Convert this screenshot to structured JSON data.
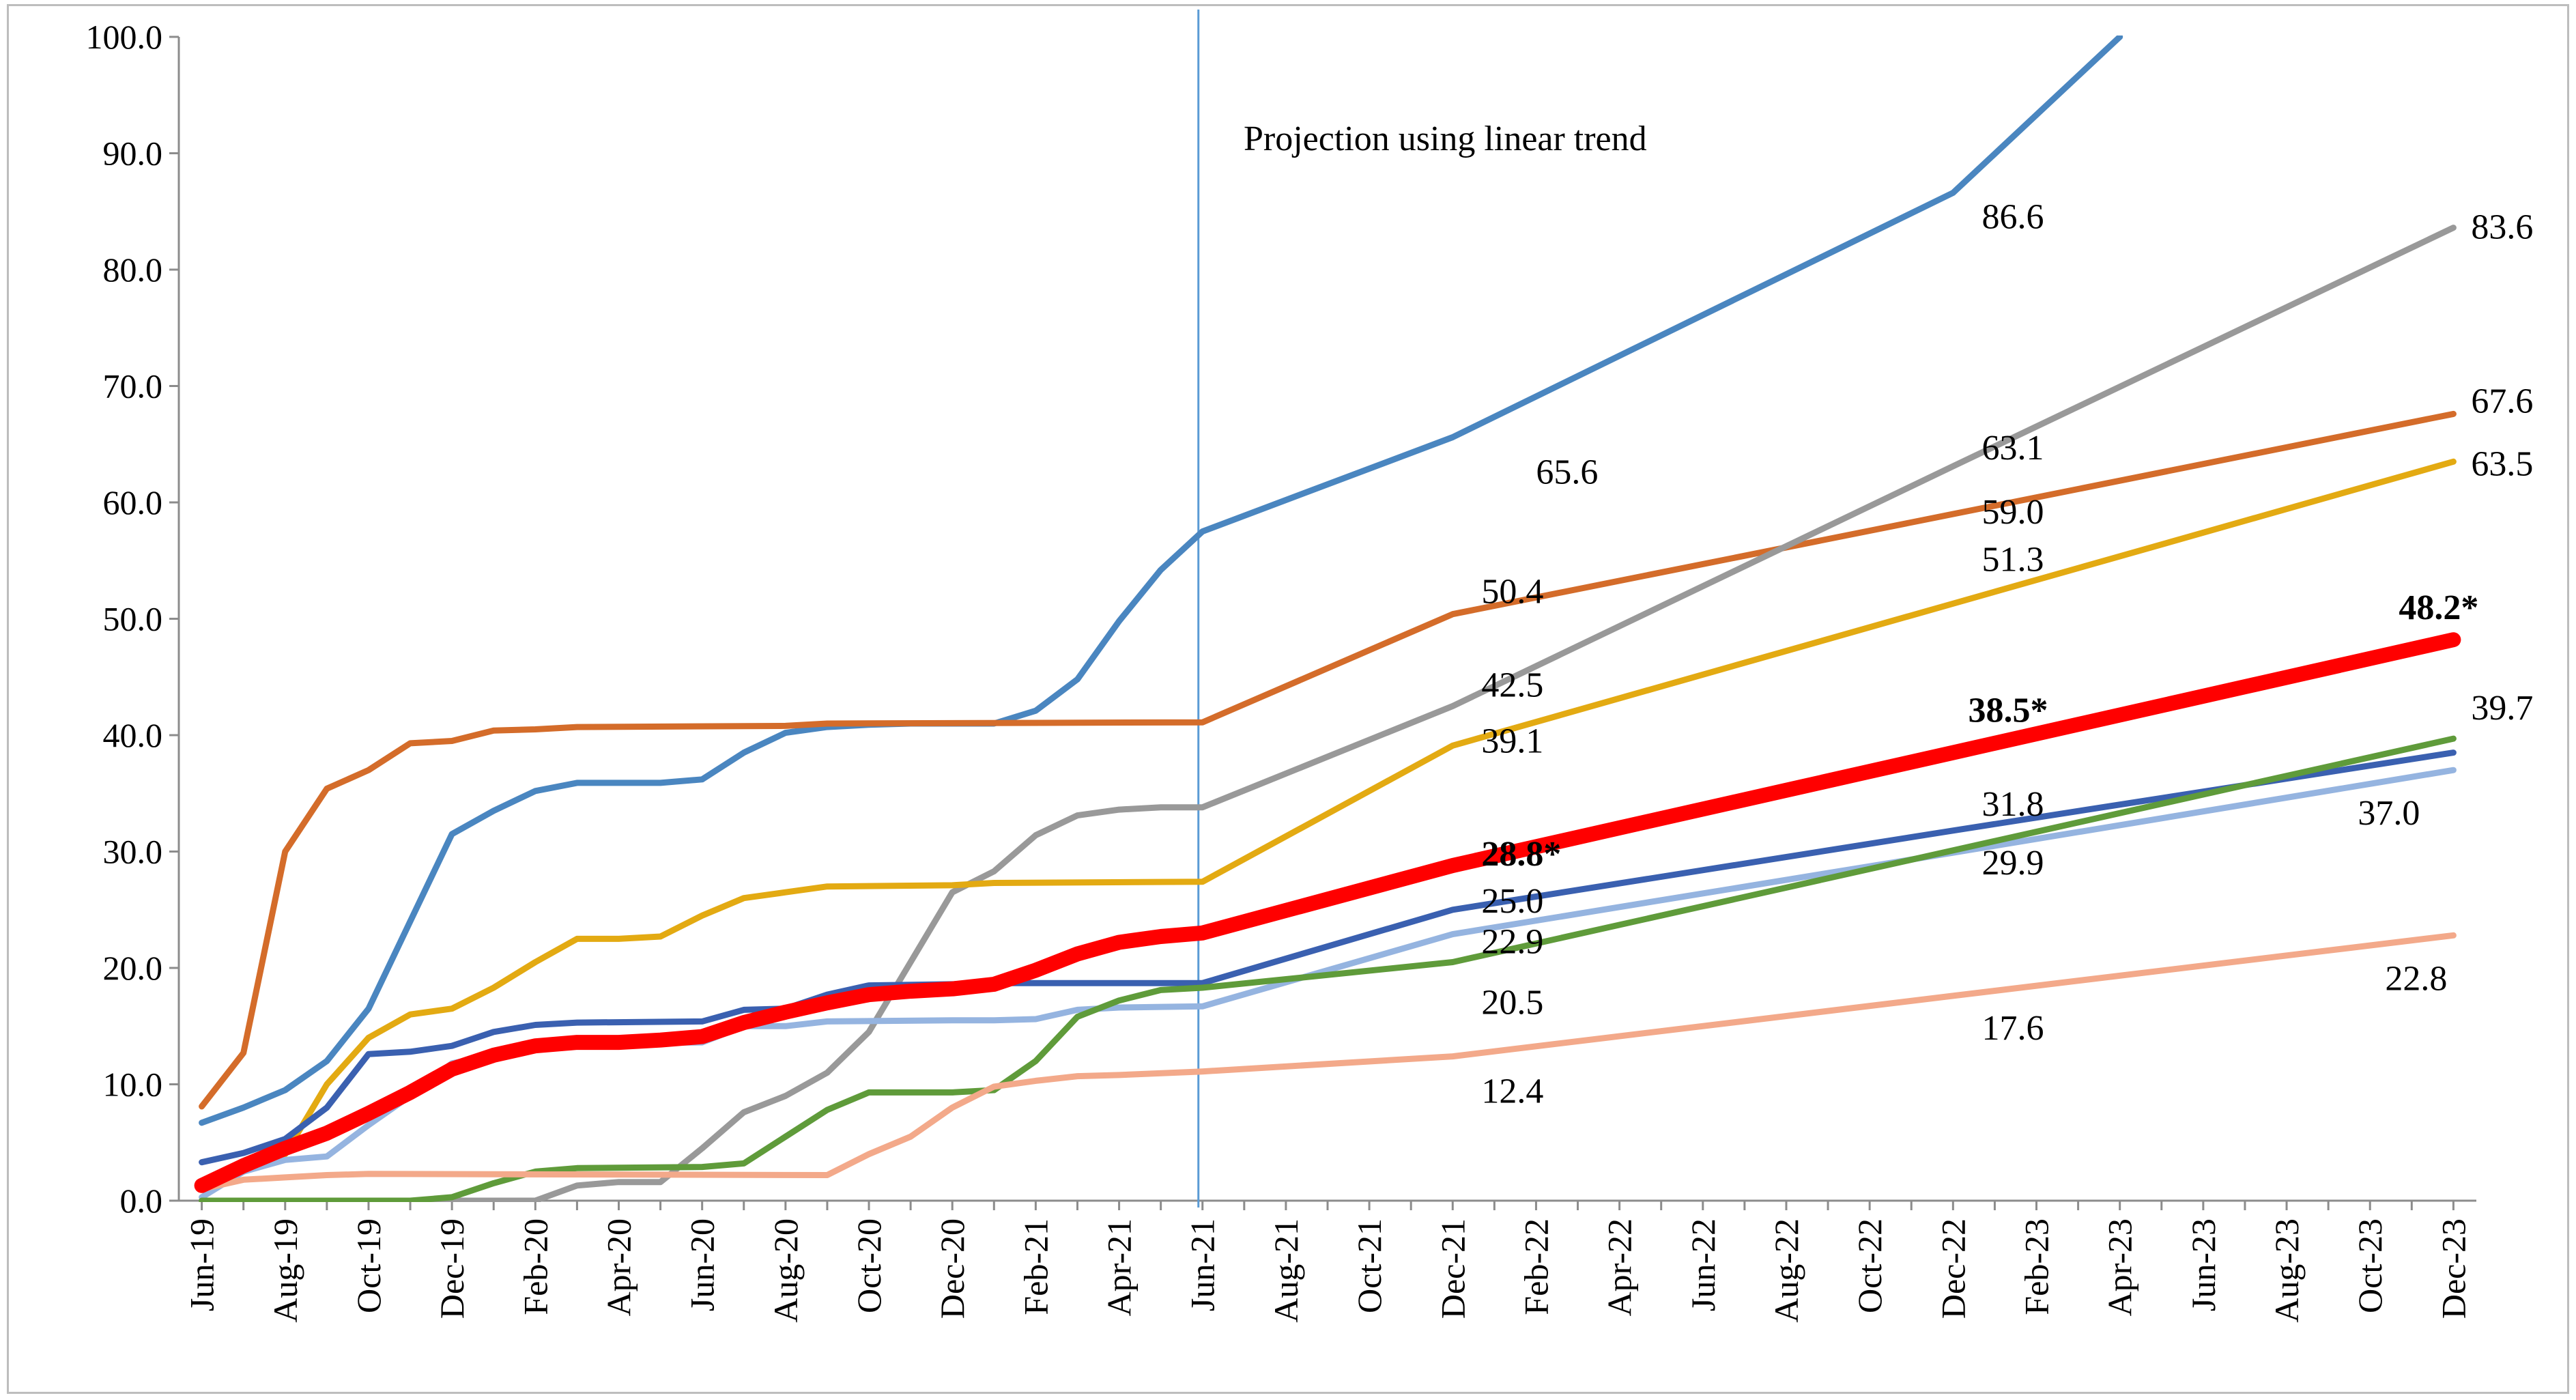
{
  "chart_data": {
    "type": "line",
    "title": "",
    "xlabel": "",
    "ylabel": "",
    "ylim": [
      0,
      100
    ],
    "yticks": [
      "0.0",
      "10.0",
      "20.0",
      "30.0",
      "40.0",
      "50.0",
      "60.0",
      "70.0",
      "80.0",
      "90.0",
      "100.0"
    ],
    "x_tick_labels": [
      "Jun-19",
      "Aug-19",
      "Oct-19",
      "Dec-19",
      "Feb-20",
      "Apr-20",
      "Jun-20",
      "Aug-20",
      "Oct-20",
      "Dec-20",
      "Feb-21",
      "Apr-21",
      "Jun-21",
      "Aug-21",
      "Oct-21",
      "Dec-21",
      "Feb-22",
      "Apr-22",
      "Jun-22",
      "Aug-22",
      "Oct-22",
      "Dec-22",
      "Feb-23",
      "Apr-23",
      "Jun-23",
      "Aug-23",
      "Oct-23",
      "Dec-23"
    ],
    "grid": false,
    "legend": "none",
    "vertical_marker": {
      "x": "Jun-21",
      "label": "Projection using linear trend",
      "color": "#5b9bd5"
    },
    "series": [
      {
        "color": "#4a86c0",
        "width": 9,
        "points": [
          [
            "Jun-19",
            6.7
          ],
          [
            "Jul-19",
            8.0
          ],
          [
            "Aug-19",
            9.5
          ],
          [
            "Sep-19",
            12.0
          ],
          [
            "Oct-19",
            16.5
          ],
          [
            "Nov-19",
            24.0
          ],
          [
            "Dec-19",
            31.5
          ],
          [
            "Jan-20",
            33.5
          ],
          [
            "Feb-20",
            35.2
          ],
          [
            "Mar-20",
            35.9
          ],
          [
            "Apr-20",
            35.9
          ],
          [
            "May-20",
            35.9
          ],
          [
            "Jun-20",
            36.2
          ],
          [
            "Jul-20",
            38.5
          ],
          [
            "Aug-20",
            40.2
          ],
          [
            "Sep-20",
            40.7
          ],
          [
            "Oct-20",
            40.9
          ],
          [
            "Nov-20",
            41.0
          ],
          [
            "Dec-20",
            41.0
          ],
          [
            "Jan-21",
            41.0
          ],
          [
            "Feb-21",
            42.1
          ],
          [
            "Mar-21",
            44.8
          ],
          [
            "Apr-21",
            49.8
          ],
          [
            "May-21",
            54.2
          ],
          [
            "Jun-21",
            57.5
          ],
          [
            "Dec-21",
            65.6
          ],
          [
            "Dec-22",
            86.6
          ],
          [
            "Apr-23",
            100.0
          ]
        ]
      },
      {
        "color": "#d46c2a",
        "width": 9,
        "points": [
          [
            "Jun-19",
            8.1
          ],
          [
            "Jul-19",
            12.7
          ],
          [
            "Aug-19",
            30.0
          ],
          [
            "Sep-19",
            35.4
          ],
          [
            "Oct-19",
            37.0
          ],
          [
            "Nov-19",
            39.3
          ],
          [
            "Dec-19",
            39.5
          ],
          [
            "Jan-20",
            40.4
          ],
          [
            "Feb-20",
            40.5
          ],
          [
            "Mar-20",
            40.7
          ],
          [
            "Aug-20",
            40.8
          ],
          [
            "Sep-20",
            41.0
          ],
          [
            "Jun-21",
            41.1
          ],
          [
            "Dec-21",
            50.4
          ],
          [
            "Dec-22",
            59.0
          ],
          [
            "Dec-23",
            67.6
          ]
        ]
      },
      {
        "color": "#999999",
        "width": 9,
        "points": [
          [
            "Jun-19",
            0.0
          ],
          [
            "Feb-20",
            0.0
          ],
          [
            "Mar-20",
            1.3
          ],
          [
            "Apr-20",
            1.6
          ],
          [
            "May-20",
            1.6
          ],
          [
            "Jun-20",
            4.5
          ],
          [
            "Jul-20",
            7.6
          ],
          [
            "Aug-20",
            9.0
          ],
          [
            "Sep-20",
            11.0
          ],
          [
            "Oct-20",
            14.5
          ],
          [
            "Nov-20",
            20.5
          ],
          [
            "Dec-20",
            26.5
          ],
          [
            "Jan-21",
            28.3
          ],
          [
            "Feb-21",
            31.4
          ],
          [
            "Mar-21",
            33.1
          ],
          [
            "Apr-21",
            33.6
          ],
          [
            "May-21",
            33.8
          ],
          [
            "Jun-21",
            33.8
          ],
          [
            "Dec-21",
            42.5
          ],
          [
            "Dec-22",
            63.1
          ],
          [
            "Dec-23",
            83.6
          ]
        ]
      },
      {
        "color": "#e3aa12",
        "width": 9,
        "points": [
          [
            "Jun-19",
            1.0
          ],
          [
            "Jul-19",
            2.5
          ],
          [
            "Aug-19",
            4.0
          ],
          [
            "Sep-19",
            10.0
          ],
          [
            "Oct-19",
            14.0
          ],
          [
            "Nov-19",
            16.0
          ],
          [
            "Dec-19",
            16.5
          ],
          [
            "Jan-20",
            18.3
          ],
          [
            "Feb-20",
            20.5
          ],
          [
            "Mar-20",
            22.5
          ],
          [
            "Apr-20",
            22.5
          ],
          [
            "May-20",
            22.7
          ],
          [
            "Jun-20",
            24.5
          ],
          [
            "Jul-20",
            26.0
          ],
          [
            "Aug-20",
            26.5
          ],
          [
            "Sep-20",
            27.0
          ],
          [
            "Dec-20",
            27.1
          ],
          [
            "Jan-21",
            27.3
          ],
          [
            "Jun-21",
            27.4
          ],
          [
            "Dec-21",
            39.1
          ],
          [
            "Dec-22",
            51.3
          ],
          [
            "Dec-23",
            63.5
          ]
        ]
      },
      {
        "color": "#3a60b0",
        "width": 9,
        "points": [
          [
            "Jun-19",
            3.3
          ],
          [
            "Jul-19",
            4.1
          ],
          [
            "Aug-19",
            5.3
          ],
          [
            "Sep-19",
            8.0
          ],
          [
            "Oct-19",
            12.6
          ],
          [
            "Nov-19",
            12.8
          ],
          [
            "Dec-19",
            13.3
          ],
          [
            "Jan-20",
            14.5
          ],
          [
            "Feb-20",
            15.1
          ],
          [
            "Mar-20",
            15.3
          ],
          [
            "Jun-20",
            15.4
          ],
          [
            "Jul-20",
            16.4
          ],
          [
            "Aug-20",
            16.5
          ],
          [
            "Sep-20",
            17.7
          ],
          [
            "Oct-20",
            18.5
          ],
          [
            "Dec-20",
            18.6
          ],
          [
            "Jan-21",
            18.7
          ],
          [
            "Jun-21",
            18.7
          ],
          [
            "Dec-21",
            25.0
          ],
          [
            "Dec-22",
            31.8
          ],
          [
            "Dec-23",
            38.5
          ]
        ]
      },
      {
        "color": "#95b4e0",
        "width": 9,
        "points": [
          [
            "Jun-19",
            0.3
          ],
          [
            "Jul-19",
            2.5
          ],
          [
            "Aug-19",
            3.5
          ],
          [
            "Sep-19",
            3.8
          ],
          [
            "Oct-19",
            6.5
          ],
          [
            "Nov-19",
            9.0
          ],
          [
            "Dec-19",
            11.8
          ],
          [
            "Jan-20",
            12.5
          ],
          [
            "Feb-20",
            13.3
          ],
          [
            "Mar-20",
            13.5
          ],
          [
            "Jun-20",
            13.6
          ],
          [
            "Jul-20",
            15.0
          ],
          [
            "Aug-20",
            15.0
          ],
          [
            "Sep-20",
            15.4
          ],
          [
            "Dec-20",
            15.5
          ],
          [
            "Jan-21",
            15.5
          ],
          [
            "Feb-21",
            15.6
          ],
          [
            "Mar-21",
            16.4
          ],
          [
            "Apr-21",
            16.6
          ],
          [
            "Jun-21",
            16.7
          ],
          [
            "Dec-21",
            22.9
          ],
          [
            "Dec-22",
            29.9
          ],
          [
            "Dec-23",
            37.0
          ]
        ]
      },
      {
        "color": "#5f9b3a",
        "width": 9,
        "points": [
          [
            "Jun-19",
            0.0
          ],
          [
            "Nov-19",
            0.0
          ],
          [
            "Dec-19",
            0.3
          ],
          [
            "Jan-20",
            1.5
          ],
          [
            "Feb-20",
            2.5
          ],
          [
            "Mar-20",
            2.8
          ],
          [
            "Jun-20",
            2.9
          ],
          [
            "Jul-20",
            3.2
          ],
          [
            "Aug-20",
            5.5
          ],
          [
            "Sep-20",
            7.8
          ],
          [
            "Oct-20",
            9.3
          ],
          [
            "Dec-20",
            9.3
          ],
          [
            "Jan-21",
            9.5
          ],
          [
            "Feb-21",
            12.0
          ],
          [
            "Mar-21",
            15.8
          ],
          [
            "Apr-21",
            17.2
          ],
          [
            "May-21",
            18.1
          ],
          [
            "Jun-21",
            18.3
          ],
          [
            "Dec-21",
            20.5
          ],
          [
            "Dec-23",
            39.7
          ]
        ]
      },
      {
        "color": "#f3a98a",
        "width": 9,
        "points": [
          [
            "Jun-19",
            1.0
          ],
          [
            "Jul-19",
            1.8
          ],
          [
            "Aug-19",
            2.0
          ],
          [
            "Sep-19",
            2.2
          ],
          [
            "Oct-19",
            2.3
          ],
          [
            "Sep-20",
            2.2
          ],
          [
            "Oct-20",
            4.0
          ],
          [
            "Nov-20",
            5.5
          ],
          [
            "Dec-20",
            8.0
          ],
          [
            "Jan-21",
            9.8
          ],
          [
            "Feb-21",
            10.3
          ],
          [
            "Mar-21",
            10.7
          ],
          [
            "Apr-21",
            10.8
          ],
          [
            "Jun-21",
            11.1
          ],
          [
            "Dec-21",
            12.4
          ],
          [
            "Dec-22",
            17.6
          ],
          [
            "Dec-23",
            22.8
          ]
        ]
      },
      {
        "color": "#ff0000",
        "width": 22,
        "points": [
          [
            "Jun-19",
            1.3
          ],
          [
            "Jul-19",
            3.0
          ],
          [
            "Aug-19",
            4.5
          ],
          [
            "Sep-19",
            5.8
          ],
          [
            "Oct-19",
            7.5
          ],
          [
            "Nov-19",
            9.3
          ],
          [
            "Dec-19",
            11.3
          ],
          [
            "Jan-20",
            12.5
          ],
          [
            "Feb-20",
            13.3
          ],
          [
            "Mar-20",
            13.6
          ],
          [
            "Apr-20",
            13.6
          ],
          [
            "May-20",
            13.8
          ],
          [
            "Jun-20",
            14.1
          ],
          [
            "Jul-20",
            15.3
          ],
          [
            "Aug-20",
            16.2
          ],
          [
            "Sep-20",
            17.0
          ],
          [
            "Oct-20",
            17.7
          ],
          [
            "Nov-20",
            18.0
          ],
          [
            "Dec-20",
            18.2
          ],
          [
            "Jan-21",
            18.6
          ],
          [
            "Feb-21",
            19.8
          ],
          [
            "Mar-21",
            21.2
          ],
          [
            "Apr-21",
            22.2
          ],
          [
            "May-21",
            22.7
          ],
          [
            "Jun-21",
            23.0
          ],
          [
            "Dec-21",
            28.8
          ],
          [
            "Dec-22",
            38.5
          ],
          [
            "Dec-23",
            48.2
          ]
        ]
      }
    ],
    "annotations": [
      {
        "text": "65.6",
        "x": "Feb-22",
        "y": 65.6,
        "bold": false
      },
      {
        "text": "86.6",
        "x": "Feb-23",
        "y": 86.6,
        "bold": false
      },
      {
        "text": "83.6",
        "x": "Dec-23",
        "y": 83.6,
        "bold": false
      },
      {
        "text": "63.1",
        "x": "Feb-23",
        "y": 63.1,
        "bold": false
      },
      {
        "text": "67.6",
        "x": "Dec-23",
        "y": 67.6,
        "bold": false
      },
      {
        "text": "59.0",
        "x": "Feb-23",
        "y": 59.0,
        "bold": false
      },
      {
        "text": "63.5",
        "x": "Dec-23",
        "y": 63.5,
        "bold": false
      },
      {
        "text": "50.4",
        "x": "Feb-22",
        "y": 50.4,
        "bold": false
      },
      {
        "text": "51.3",
        "x": "Feb-23",
        "y": 51.3,
        "bold": false
      },
      {
        "text": "42.5",
        "x": "Feb-22",
        "y": 42.5,
        "bold": false
      },
      {
        "text": "48.2*",
        "x": "Dec-23",
        "y": 48.2,
        "bold": true
      },
      {
        "text": "39.1",
        "x": "Feb-22",
        "y": 39.1,
        "bold": false
      },
      {
        "text": "38.5*",
        "x": "Feb-23",
        "y": 38.5,
        "bold": true
      },
      {
        "text": "39.7",
        "x": "Dec-23",
        "y": 39.7,
        "bold": false
      },
      {
        "text": "28.8*",
        "x": "Feb-22",
        "y": 28.8,
        "bold": true
      },
      {
        "text": "31.8",
        "x": "Feb-23",
        "y": 31.8,
        "bold": false
      },
      {
        "text": "25.0",
        "x": "Feb-22",
        "y": 25.0,
        "bold": false
      },
      {
        "text": "29.9",
        "x": "Feb-23",
        "y": 29.9,
        "bold": false
      },
      {
        "text": "37.0",
        "x": "Dec-23",
        "y": 37.0,
        "bold": false
      },
      {
        "text": "22.9",
        "x": "Feb-22",
        "y": 22.9,
        "bold": false
      },
      {
        "text": "20.5",
        "x": "Feb-22",
        "y": 20.5,
        "bold": false
      },
      {
        "text": "22.8",
        "x": "Dec-23",
        "y": 22.8,
        "bold": false
      },
      {
        "text": "17.6",
        "x": "Feb-23",
        "y": 17.6,
        "bold": false
      },
      {
        "text": "12.4",
        "x": "Feb-22",
        "y": 12.4,
        "bold": false
      }
    ]
  }
}
